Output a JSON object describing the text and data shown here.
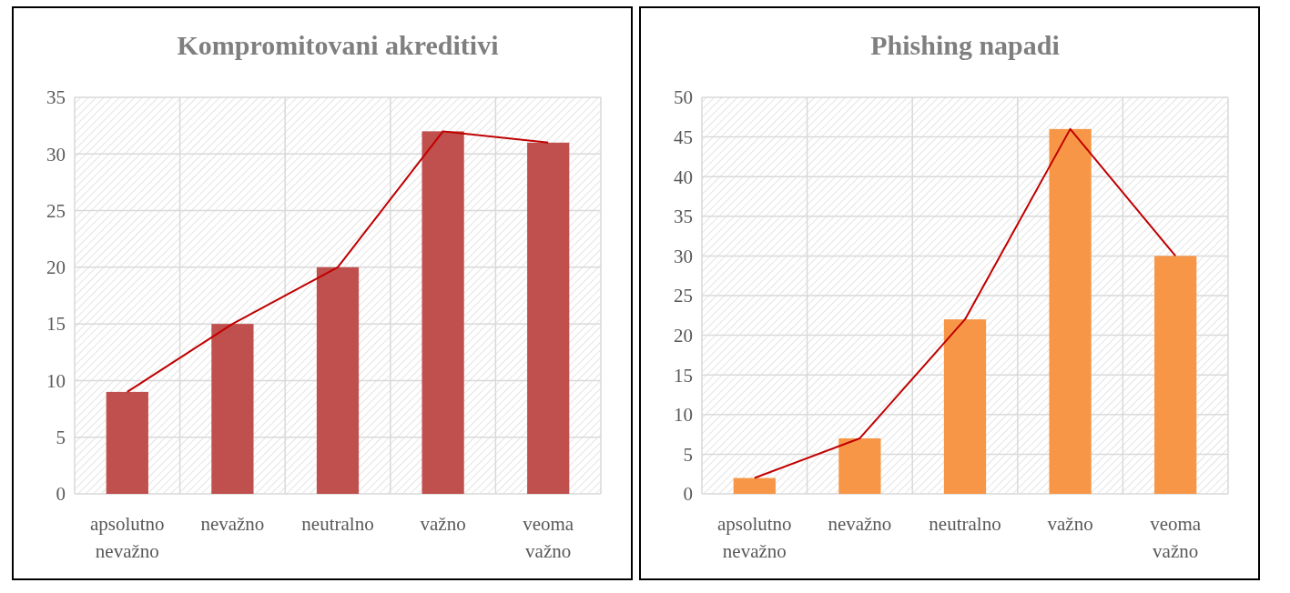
{
  "chart_data": [
    {
      "type": "bar",
      "title": "Kompromitovani akreditivi",
      "categories": [
        "apsolutno nevažno",
        "nevažno",
        "neutralno",
        "važno",
        "veoma važno"
      ],
      "series": [
        {
          "color": "#c0504d",
          "values": [
            9,
            15,
            20,
            32,
            31
          ]
        },
        {
          "type": "line",
          "color": "#c00000",
          "values": [
            9,
            15,
            20,
            32,
            31
          ]
        }
      ],
      "ylim": [
        0,
        35
      ],
      "yticks": [
        0,
        5,
        10,
        15,
        20,
        25,
        30,
        35
      ],
      "grid": true,
      "marker": "none"
    },
    {
      "type": "bar",
      "title": "Phishing napadi",
      "categories": [
        "apsolutno nevažno",
        "nevažno",
        "neutralno",
        "važno",
        "veoma važno"
      ],
      "series": [
        {
          "color": "#f79646",
          "values": [
            2,
            7,
            22,
            46,
            30
          ]
        },
        {
          "type": "line",
          "color": "#c00000",
          "values": [
            2,
            7,
            22,
            46,
            30
          ]
        }
      ],
      "ylim": [
        0,
        50
      ],
      "yticks": [
        0,
        5,
        10,
        15,
        20,
        25,
        30,
        35,
        40,
        45,
        50
      ],
      "grid": true,
      "marker": "none"
    }
  ]
}
